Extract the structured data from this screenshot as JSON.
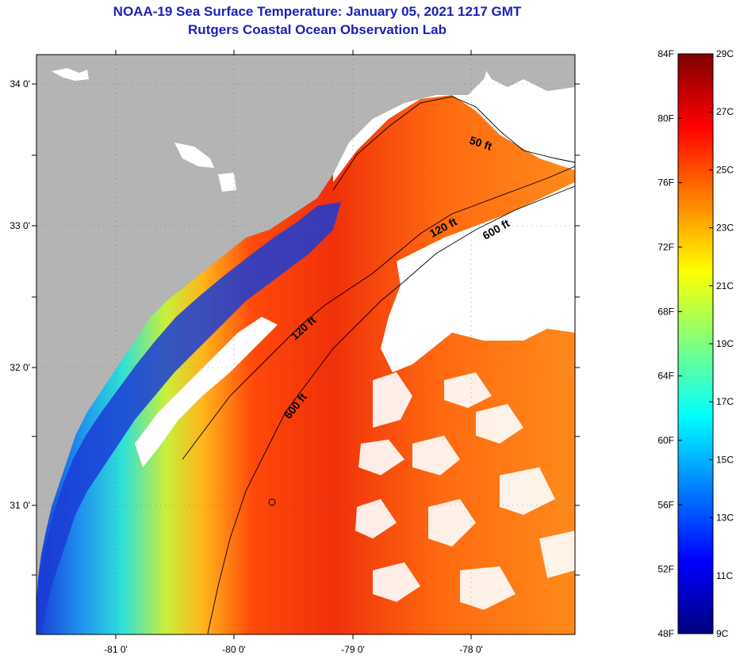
{
  "header": {
    "title": "NOAA-19 Sea Surface Temperature:  January 05, 2021 1217 GMT",
    "subtitle": "Rutgers Coastal Ocean Observation Lab"
  },
  "map": {
    "x_ticks": [
      "-81 0'",
      "-80 0'",
      "-79 0'",
      "-78 0'"
    ],
    "y_ticks": [
      "34 0'",
      "33 0'",
      "32 0'",
      "31 0'"
    ],
    "contour_labels": [
      "50 ft",
      "120 ft",
      "600 ft",
      "120 ft",
      "600 ft"
    ],
    "land_color": "#b4b4b4",
    "cloud_color": "#ffffff"
  },
  "colorbar": {
    "f_labels": [
      "84F",
      "80F",
      "76F",
      "72F",
      "68F",
      "64F",
      "60F",
      "56F",
      "52F",
      "48F"
    ],
    "c_labels": [
      "29C",
      "27C",
      "25C",
      "23C",
      "21C",
      "19C",
      "17C",
      "15C",
      "13C",
      "11C",
      "9C"
    ],
    "colors": [
      "#00007f",
      "#0000ff",
      "#007fff",
      "#00ffff",
      "#7fff7f",
      "#ffff00",
      "#ff7f00",
      "#ff0000",
      "#7f0000"
    ]
  }
}
